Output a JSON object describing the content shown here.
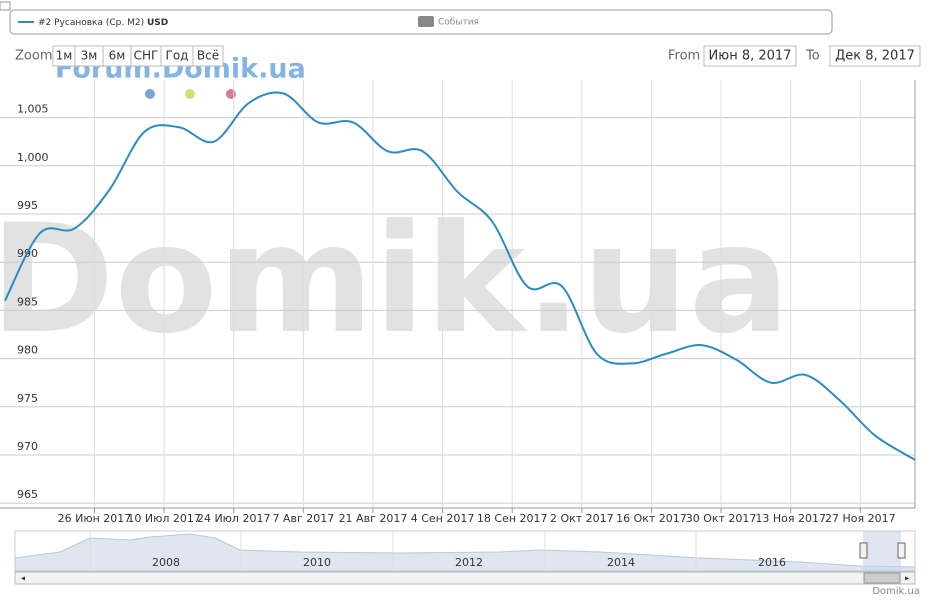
{
  "legend": {
    "series_name": "#2 Русановка (Ср. M2)",
    "unit": "USD",
    "events": "События"
  },
  "toolbar": {
    "zoom": "Zoom",
    "buttons": [
      "1м",
      "3м",
      "6м",
      "СНГ",
      "Год",
      "Всё"
    ],
    "from_label": "From",
    "from": "Июн 8, 2017",
    "to_label": "To",
    "to": "Дек 8, 2017"
  },
  "watermark": {
    "small": "Forum.Domik.ua",
    "large": "Domik.ua"
  },
  "chart_data": {
    "type": "line",
    "x": [
      "2017-06-08",
      "2017-06-15",
      "2017-06-22",
      "2017-06-29",
      "2017-07-06",
      "2017-07-13",
      "2017-07-20",
      "2017-07-27",
      "2017-08-03",
      "2017-08-10",
      "2017-08-17",
      "2017-08-24",
      "2017-08-31",
      "2017-09-07",
      "2017-09-14",
      "2017-09-21",
      "2017-09-28",
      "2017-10-05",
      "2017-10-12",
      "2017-10-19",
      "2017-10-26",
      "2017-11-02",
      "2017-11-09",
      "2017-11-16",
      "2017-11-23",
      "2017-11-30",
      "2017-12-08"
    ],
    "series": [
      {
        "name": "#2 Русановка (Ср. M2) USD",
        "color": "#2b8cc4",
        "values": [
          986,
          993,
          993.5,
          997.5,
          1003.5,
          1004,
          1002.5,
          1006.5,
          1007.5,
          1004.5,
          1004.5,
          1001.5,
          1001.5,
          997.3,
          994.2,
          987.5,
          987.5,
          980.5,
          979.5,
          980.5,
          981.4,
          979.9,
          977.5,
          978.3,
          975.6,
          972,
          969.5
        ]
      }
    ],
    "xlim": [
      "2017-06-07",
      "2017-12-08"
    ],
    "xticks": [
      {
        "value": "2017-06-26",
        "label": "26 Июн 2017"
      },
      {
        "value": "2017-07-10",
        "label": "10 Июл 2017"
      },
      {
        "value": "2017-07-24",
        "label": "24 Июл 2017"
      },
      {
        "value": "2017-08-07",
        "label": "7 Авг 2017"
      },
      {
        "value": "2017-08-21",
        "label": "21 Авг 2017"
      },
      {
        "value": "2017-09-04",
        "label": "4 Сен 2017"
      },
      {
        "value": "2017-09-18",
        "label": "18 Сен 2017"
      },
      {
        "value": "2017-10-02",
        "label": "2 Окт 2017"
      },
      {
        "value": "2017-10-16",
        "label": "16 Окт 2017"
      },
      {
        "value": "2017-10-30",
        "label": "30 Окт 2017"
      },
      {
        "value": "2017-11-13",
        "label": "13 Ноя 2017"
      },
      {
        "value": "2017-11-27",
        "label": "27 Ноя 2017"
      }
    ],
    "ylim": [
      964.5,
      1008.9
    ],
    "yticks": [
      965,
      970,
      975,
      980,
      985,
      990,
      995,
      {
        "value": 1000,
        "label": "1,000"
      },
      {
        "value": 1005,
        "label": "1,005"
      }
    ],
    "grid": true
  },
  "navigator": {
    "years": [
      "2008",
      "2010",
      "2012",
      "2014",
      "2016"
    ]
  },
  "credit": "Domik.ua"
}
